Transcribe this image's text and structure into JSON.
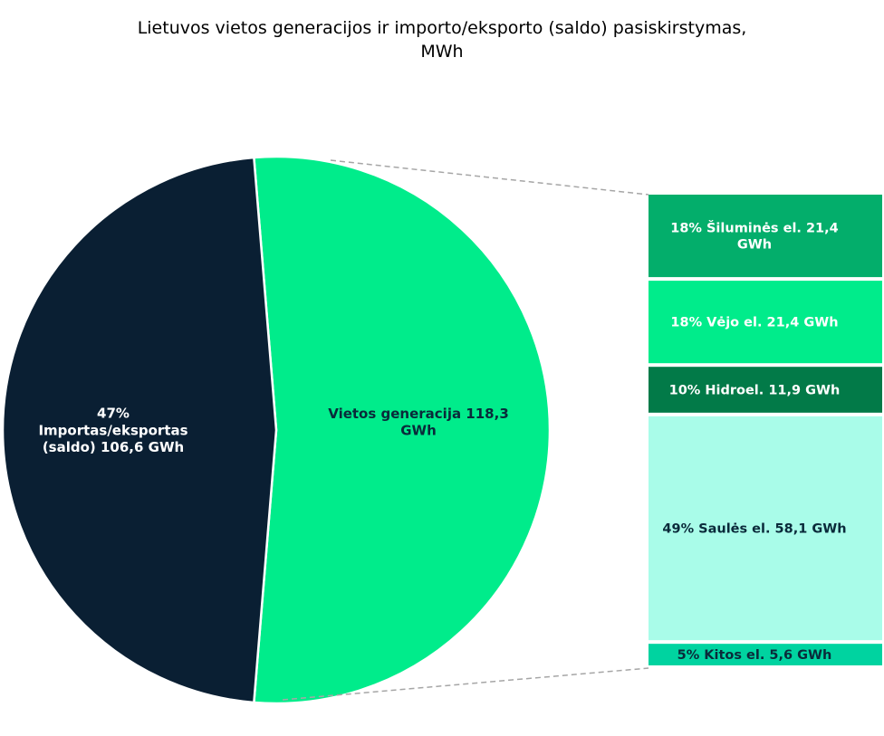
{
  "chart_data": {
    "type": "pie",
    "subtype": "bar-of-pie",
    "title_line1": "Lietuvos vietos generacijos ir importo/eksporto (saldo) pasiskirstymas,",
    "title_line2": "MWh",
    "unit": "GWh",
    "pie": [
      {
        "name": "Importas/eksportas (saldo)",
        "value": 106.6,
        "percent": 47,
        "label_lines": [
          "47%",
          "Importas/eksportas",
          "(saldo)  106,6 GWh"
        ],
        "color": "#0A1F33",
        "text_color": "#FFFFFF"
      },
      {
        "name": "Vietos generacija",
        "value": 118.3,
        "label_lines": [
          "Vietos generacija   118,3",
          "GWh"
        ],
        "color": "#00EC8B",
        "text_color": "#0A2A3A"
      }
    ],
    "bar": [
      {
        "name": "Šiluminės el.",
        "value": 21.4,
        "percent": 18,
        "label_lines": [
          "18% Šiluminės el.  21,4",
          "GWh"
        ],
        "color": "#03AE6B",
        "text_color": "#FFFFFF"
      },
      {
        "name": "Vėjo el.",
        "value": 21.4,
        "percent": 18,
        "label_lines": [
          "18% Vėjo el.  21,4 GWh"
        ],
        "color": "#00EC8B",
        "text_color": "#FFFFFF"
      },
      {
        "name": "Hidroel.",
        "value": 11.9,
        "percent": 10,
        "label_lines": [
          "10% Hidroel.  11,9 GWh"
        ],
        "color": "#027A48",
        "text_color": "#FFFFFF"
      },
      {
        "name": "Saulės el.",
        "value": 58.1,
        "percent": 49,
        "label_lines": [
          "49% Saulės el.  58,1 GWh"
        ],
        "color": "#A9FCE9",
        "text_color": "#0A2A3A"
      },
      {
        "name": "Kitos el.",
        "value": 5.6,
        "percent": 5,
        "label_lines": [
          "5% Kitos el.  5,6 GWh"
        ],
        "color": "#00D3A0",
        "text_color": "#0A2A3A"
      }
    ],
    "connector_color": "#A6A6A6"
  }
}
